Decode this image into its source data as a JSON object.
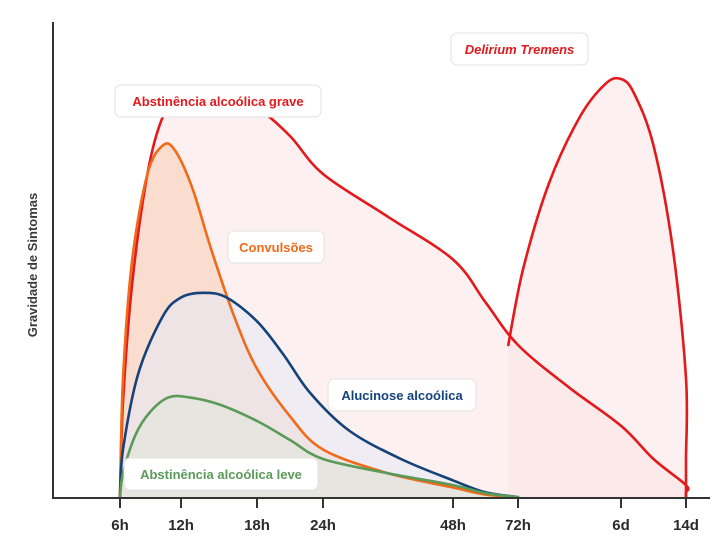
{
  "chart_data": {
    "type": "area",
    "title": "",
    "xlabel": "",
    "ylabel": "Gravidade de Sintomas",
    "x_categories": [
      "6h",
      "12h",
      "18h",
      "24h",
      "48h",
      "72h",
      "6d",
      "14d"
    ],
    "ylim": [
      0,
      100
    ],
    "grid": false,
    "series": [
      {
        "name": "Abstinência alcoólica grave",
        "color": "#e3191c",
        "fill": "#fce3e3",
        "italic": false,
        "points": [
          [
            0,
            0
          ],
          [
            0.05,
            20
          ],
          [
            0.2,
            45
          ],
          [
            0.45,
            68
          ],
          [
            0.7,
            80
          ],
          [
            1,
            85
          ],
          [
            1.3,
            86
          ],
          [
            1.6,
            85
          ],
          [
            2,
            82
          ],
          [
            2.5,
            76
          ],
          [
            3,
            68
          ],
          [
            3.5,
            59
          ],
          [
            4,
            50
          ],
          [
            4.5,
            41
          ],
          [
            5,
            32
          ],
          [
            5.5,
            23
          ],
          [
            6,
            15
          ],
          [
            6.5,
            8
          ],
          [
            7,
            2.5
          ],
          [
            7.2,
            1
          ],
          [
            7.4,
            0
          ]
        ]
      },
      {
        "name": "Convulsões",
        "color": "#f06a1a",
        "fill": "#f9cdb6",
        "italic": false,
        "points": [
          [
            0,
            0
          ],
          [
            0.05,
            25
          ],
          [
            0.2,
            50
          ],
          [
            0.45,
            68
          ],
          [
            0.7,
            74
          ],
          [
            0.9,
            73
          ],
          [
            1.15,
            65
          ],
          [
            1.4,
            52
          ],
          [
            1.7,
            38
          ],
          [
            2,
            27
          ],
          [
            2.5,
            17
          ],
          [
            3,
            10
          ],
          [
            3.5,
            5
          ],
          [
            4,
            2
          ],
          [
            4.5,
            0.5
          ],
          [
            5,
            0
          ]
        ]
      },
      {
        "name": "Alucinose alcoólica",
        "color": "#14437a",
        "fill": "#e4eaf5",
        "italic": false,
        "points": [
          [
            0,
            0
          ],
          [
            0.05,
            10
          ],
          [
            0.3,
            26
          ],
          [
            0.7,
            38
          ],
          [
            1,
            42
          ],
          [
            1.3,
            43
          ],
          [
            1.6,
            42
          ],
          [
            2,
            37
          ],
          [
            2.4,
            30
          ],
          [
            2.8,
            22
          ],
          [
            3.2,
            14
          ],
          [
            3.6,
            8
          ],
          [
            4,
            3.5
          ],
          [
            4.5,
            1
          ],
          [
            5,
            0
          ]
        ]
      },
      {
        "name": "Abstinência alcoólica leve",
        "color": "#5b9a59",
        "fill": "#e0e6da",
        "italic": false,
        "points": [
          [
            0,
            0
          ],
          [
            0.05,
            5
          ],
          [
            0.25,
            13
          ],
          [
            0.5,
            18
          ],
          [
            0.8,
            21
          ],
          [
            1.1,
            21
          ],
          [
            1.5,
            19.5
          ],
          [
            2,
            16
          ],
          [
            2.5,
            12
          ],
          [
            3,
            8
          ],
          [
            3.5,
            5
          ],
          [
            4,
            2.5
          ],
          [
            4.5,
            0.8
          ],
          [
            5,
            0
          ]
        ]
      },
      {
        "name": "Delirium Tremens",
        "color": "#e3191c",
        "fill": "#fce3e3",
        "italic": true,
        "points": [
          [
            4.85,
            32
          ],
          [
            5.05,
            48
          ],
          [
            5.3,
            66
          ],
          [
            5.6,
            80
          ],
          [
            5.85,
            87
          ],
          [
            6,
            88
          ],
          [
            6.2,
            85
          ],
          [
            6.5,
            74
          ],
          [
            6.8,
            52
          ],
          [
            7.1,
            25
          ],
          [
            7.3,
            8
          ],
          [
            7.4,
            0
          ]
        ]
      }
    ]
  }
}
